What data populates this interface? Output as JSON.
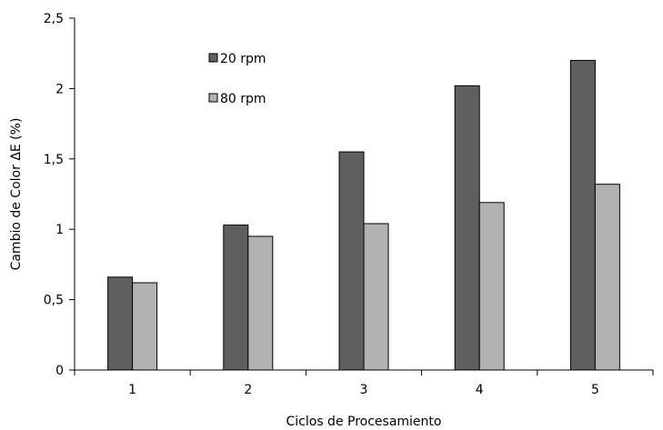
{
  "chart_data": {
    "type": "bar",
    "categories": [
      "1",
      "2",
      "3",
      "4",
      "5"
    ],
    "series": [
      {
        "name": "20 rpm",
        "values": [
          0.66,
          1.03,
          1.55,
          2.02,
          2.2
        ],
        "color": "#5f5f5f"
      },
      {
        "name": "80 rpm",
        "values": [
          0.62,
          0.95,
          1.04,
          1.19,
          1.32
        ],
        "color": "#b2b2b2"
      }
    ],
    "xlabel": "Ciclos de Procesamiento",
    "ylabel": "Cambio de Color ΔE (%)",
    "ylim": [
      0,
      2.5
    ],
    "yticks": [
      "0",
      "0,5",
      "1",
      "1,5",
      "2",
      "2,5"
    ],
    "legend_position": "top-left",
    "grid": false
  }
}
